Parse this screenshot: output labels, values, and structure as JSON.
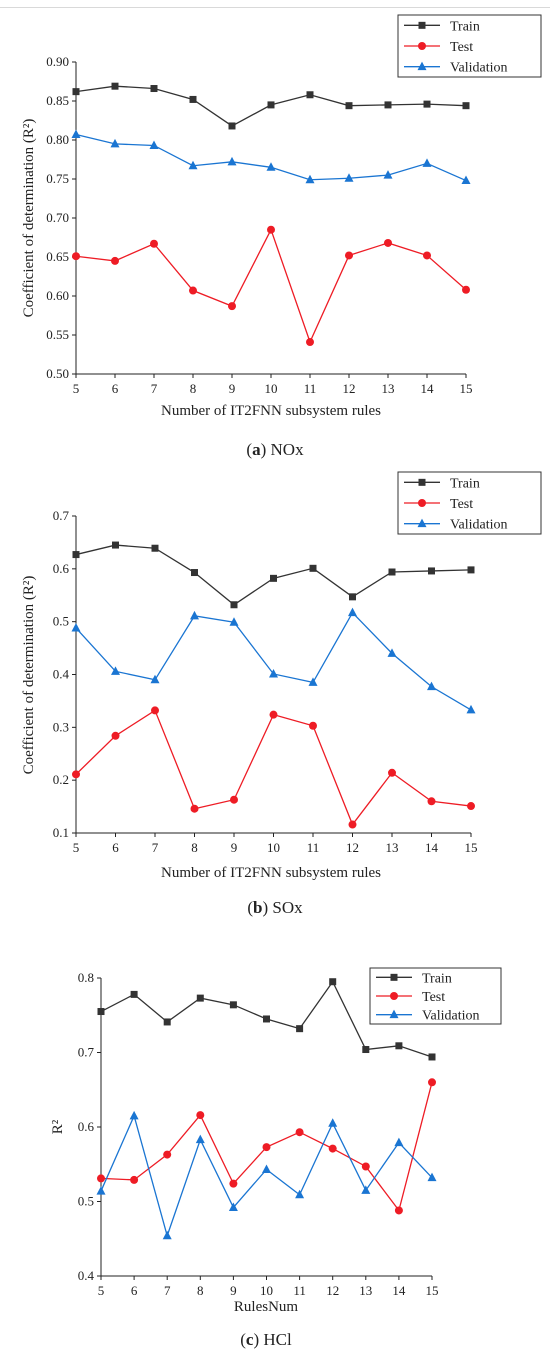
{
  "chart_data": [
    {
      "type": "line",
      "caption": {
        "letter": "a",
        "name": "NOx"
      },
      "x": [
        5,
        6,
        7,
        8,
        9,
        10,
        11,
        12,
        13,
        14,
        15
      ],
      "xlabel": "Number of IT2FNN subsystem rules",
      "ylabel": "Coefficient of determination (R²)",
      "xlim": [
        5,
        15
      ],
      "ylim": [
        0.5,
        0.9
      ],
      "xticks": [
        "5",
        "6",
        "7",
        "8",
        "9",
        "10",
        "11",
        "12",
        "13",
        "14",
        "15"
      ],
      "yticks": [
        "0.50",
        "0.55",
        "0.60",
        "0.65",
        "0.70",
        "0.75",
        "0.80",
        "0.85",
        "0.90"
      ],
      "legend_position": "top-right",
      "series": [
        {
          "name": "Train",
          "marker": "square",
          "color": "#333333",
          "values": [
            0.862,
            0.869,
            0.866,
            0.852,
            0.818,
            0.845,
            0.858,
            0.844,
            0.845,
            0.846,
            0.844
          ]
        },
        {
          "name": "Test",
          "marker": "circle",
          "color": "#ee1c25",
          "values": [
            0.651,
            0.645,
            0.667,
            0.607,
            0.587,
            0.685,
            0.541,
            0.652,
            0.668,
            0.652,
            0.608
          ]
        },
        {
          "name": "Validation",
          "marker": "triangle",
          "color": "#1a75d2",
          "values": [
            0.807,
            0.795,
            0.793,
            0.767,
            0.772,
            0.765,
            0.749,
            0.751,
            0.755,
            0.77,
            0.748
          ]
        }
      ]
    },
    {
      "type": "line",
      "caption": {
        "letter": "b",
        "name": "SOx"
      },
      "x": [
        5,
        6,
        7,
        8,
        9,
        10,
        11,
        12,
        13,
        14,
        15
      ],
      "xlabel": "Number of IT2FNN subsystem rules",
      "ylabel": "Coefficient of determination (R²)",
      "xlim": [
        5,
        15
      ],
      "ylim": [
        0.1,
        0.7
      ],
      "xticks": [
        "5",
        "6",
        "7",
        "8",
        "9",
        "10",
        "11",
        "12",
        "13",
        "14",
        "15"
      ],
      "yticks": [
        "0.1",
        "0.2",
        "0.3",
        "0.4",
        "0.5",
        "0.6",
        "0.7"
      ],
      "legend_position": "top-right",
      "series": [
        {
          "name": "Train",
          "marker": "square",
          "color": "#333333",
          "values": [
            0.627,
            0.645,
            0.639,
            0.593,
            0.532,
            0.582,
            0.601,
            0.547,
            0.594,
            0.596,
            0.598
          ]
        },
        {
          "name": "Test",
          "marker": "circle",
          "color": "#ee1c25",
          "values": [
            0.211,
            0.284,
            0.332,
            0.146,
            0.163,
            0.324,
            0.303,
            0.116,
            0.214,
            0.16,
            0.151
          ]
        },
        {
          "name": "Validation",
          "marker": "triangle",
          "color": "#1a75d2",
          "values": [
            0.488,
            0.406,
            0.39,
            0.511,
            0.499,
            0.401,
            0.385,
            0.517,
            0.44,
            0.377,
            0.333
          ]
        }
      ]
    },
    {
      "type": "line",
      "caption": {
        "letter": "c",
        "name": "HCl"
      },
      "x": [
        5,
        6,
        7,
        8,
        9,
        10,
        11,
        12,
        13,
        14,
        15
      ],
      "xlabel": "RulesNum",
      "ylabel": "R²",
      "xlim": [
        5,
        15
      ],
      "ylim": [
        0.4,
        0.8
      ],
      "xticks": [
        "5",
        "6",
        "7",
        "8",
        "9",
        "10",
        "11",
        "12",
        "13",
        "14",
        "15"
      ],
      "yticks": [
        "0.4",
        "0.5",
        "0.6",
        "0.7",
        "0.8"
      ],
      "legend_position": "top-right",
      "series": [
        {
          "name": "Train",
          "marker": "square",
          "color": "#333333",
          "values": [
            0.755,
            0.778,
            0.741,
            0.773,
            0.764,
            0.745,
            0.732,
            0.795,
            0.704,
            0.709,
            0.694
          ]
        },
        {
          "name": "Test",
          "marker": "circle",
          "color": "#ee1c25",
          "values": [
            0.531,
            0.529,
            0.563,
            0.616,
            0.524,
            0.573,
            0.593,
            0.571,
            0.547,
            0.488,
            0.66
          ]
        },
        {
          "name": "Validation",
          "marker": "triangle",
          "color": "#1a75d2",
          "values": [
            0.514,
            0.615,
            0.454,
            0.583,
            0.492,
            0.543,
            0.509,
            0.605,
            0.515,
            0.579,
            0.532
          ]
        }
      ]
    }
  ]
}
